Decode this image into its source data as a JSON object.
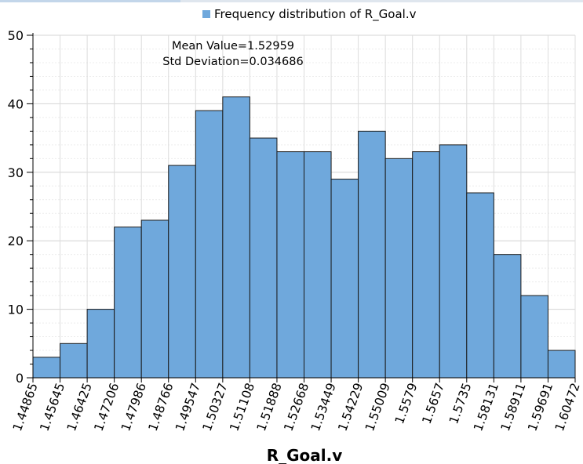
{
  "chart_data": {
    "type": "bar",
    "legend": {
      "label": "Frequency distribution of R_Goal.v",
      "color": "#6fa8dc",
      "position": "top-center"
    },
    "annotations": [
      "Mean Value=1.52959",
      "Std Deviation=0.034686"
    ],
    "xlabel": "R_Goal.v",
    "ylabel": "",
    "ylim": [
      0,
      50
    ],
    "yticks": [
      0,
      10,
      20,
      30,
      40,
      50
    ],
    "bin_edges": [
      "1.44865",
      "1.45645",
      "1.46425",
      "1.47206",
      "1.47986",
      "1.48766",
      "1.49547",
      "1.50327",
      "1.51108",
      "1.51888",
      "1.52668",
      "1.53449",
      "1.54229",
      "1.55009",
      "1.5579",
      "1.5657",
      "1.5735",
      "1.58131",
      "1.58911",
      "1.59691",
      "1.60472"
    ],
    "values": [
      3,
      5,
      10,
      22,
      23,
      31,
      39,
      41,
      35,
      33,
      33,
      29,
      36,
      32,
      33,
      34,
      27,
      18,
      12,
      4
    ],
    "bar_color": "#6fa8dc",
    "bar_edge_color": "#1a1a1a",
    "grid": true
  }
}
